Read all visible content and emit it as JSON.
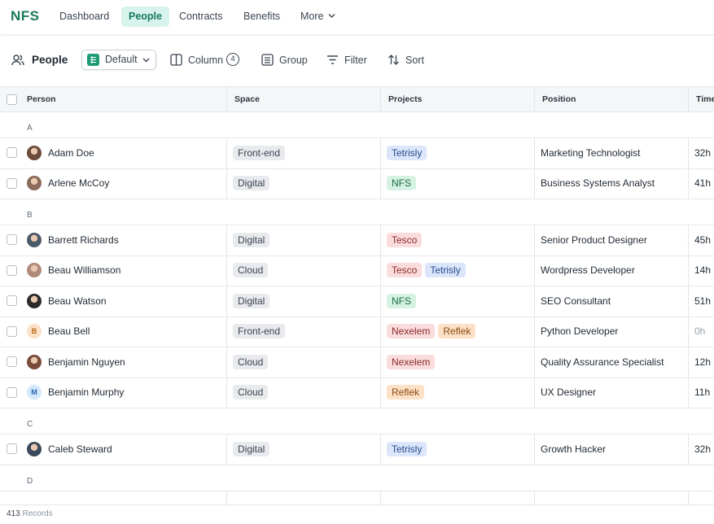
{
  "nav": {
    "logo": "NFS",
    "items": [
      "Dashboard",
      "People",
      "Contracts",
      "Benefits",
      "More"
    ],
    "active_item": 1
  },
  "toolbar": {
    "title": "People",
    "view": "Default",
    "column": "Column",
    "column_count": "4",
    "group": "Group",
    "filter": "Filter",
    "sort": "Sort"
  },
  "table": {
    "columns": [
      "Person",
      "Space",
      "Projects",
      "Position",
      "Time"
    ],
    "groups": [
      {
        "label": "A",
        "rows": [
          {
            "person": "Adam Doe",
            "space": "Front-end",
            "projects": [
              {
                "name": "Tetrisly",
                "color": "blue"
              }
            ],
            "position": "Marketing Technologist",
            "time": "32h"
          },
          {
            "person": "Arlene McCoy",
            "space": "Digital",
            "projects": [
              {
                "name": "NFS",
                "color": "green"
              }
            ],
            "position": "Business Systems Analyst",
            "time": "41h"
          }
        ]
      },
      {
        "label": "B",
        "rows": [
          {
            "person": "Barrett Richards",
            "space": "Digital",
            "projects": [
              {
                "name": "Tesco",
                "color": "red"
              }
            ],
            "position": "Senior Product Designer",
            "time": "45h"
          },
          {
            "person": "Beau Williamson",
            "space": "Cloud",
            "projects": [
              {
                "name": "Tesco",
                "color": "red"
              },
              {
                "name": "Tetrisly",
                "color": "blue"
              }
            ],
            "position": "Wordpress Developer",
            "time": "14h"
          },
          {
            "person": "Beau Watson",
            "space": "Digital",
            "projects": [
              {
                "name": "NFS",
                "color": "green"
              }
            ],
            "position": "SEO Consultant",
            "time": "51h"
          },
          {
            "person": "Beau Bell",
            "initial": "B",
            "avatar_color": "orange",
            "space": "Front-end",
            "projects": [
              {
                "name": "Nexelem",
                "color": "red"
              },
              {
                "name": "Reflek",
                "color": "orange"
              }
            ],
            "position": "Python Developer",
            "time": "0h",
            "time_muted": true
          },
          {
            "person": "Benjamin Nguyen",
            "space": "Cloud",
            "projects": [
              {
                "name": "Nexelem",
                "color": "red"
              }
            ],
            "position": "Quality Assurance Specialist",
            "time": "12h"
          },
          {
            "person": "Benjamin Murphy",
            "initial": "M",
            "avatar_color": "blue",
            "space": "Cloud",
            "projects": [
              {
                "name": "Reflek",
                "color": "orange"
              }
            ],
            "position": "UX Designer",
            "time": "11h"
          }
        ]
      },
      {
        "label": "C",
        "rows": [
          {
            "person": "Caleb Steward",
            "space": "Digital",
            "projects": [
              {
                "name": "Tetrisly",
                "color": "blue"
              }
            ],
            "position": "Growth Hacker",
            "time": "32h"
          }
        ]
      },
      {
        "label": "D",
        "rows": []
      }
    ]
  },
  "footer": {
    "count": "413",
    "label": "Records"
  }
}
